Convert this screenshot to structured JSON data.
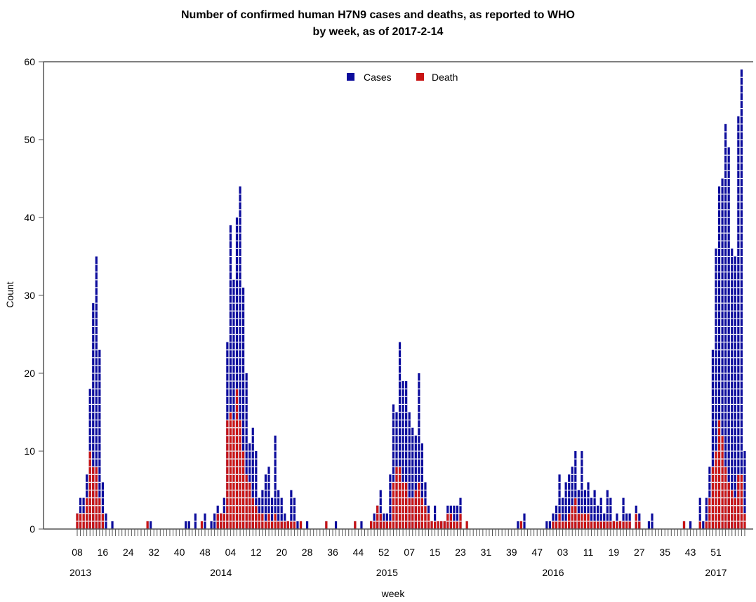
{
  "chart_data": {
    "type": "bar",
    "title": "Number of confirmed human H7N9 cases and deaths, as reported to WHO",
    "subtitle": "by week, as of 2017-2-14",
    "xlabel": "week",
    "ylabel": "Count",
    "ylim": [
      0,
      60
    ],
    "y_ticks": [
      0,
      10,
      20,
      30,
      40,
      50,
      60
    ],
    "legend_position": "top-center",
    "colors": {
      "Cases": "#0c0c9c",
      "Death": "#c81414",
      "separator": "#ffffff"
    },
    "x_tick_labels": [
      "08",
      "16",
      "24",
      "32",
      "40",
      "48",
      "04",
      "12",
      "20",
      "28",
      "36",
      "44",
      "52",
      "07",
      "15",
      "23",
      "31",
      "39",
      "47",
      "03",
      "11",
      "19",
      "27",
      "35",
      "43",
      "51"
    ],
    "x_tick_week_indices": [
      0,
      8,
      16,
      24,
      32,
      40,
      48,
      56,
      64,
      72,
      80,
      88,
      96,
      104,
      112,
      120,
      128,
      136,
      144,
      152,
      160,
      168,
      176,
      184,
      192,
      200
    ],
    "year_labels": [
      {
        "label": "2013",
        "week_index": 1
      },
      {
        "label": "2014",
        "week_index": 45
      },
      {
        "label": "2015",
        "week_index": 97
      },
      {
        "label": "2016",
        "week_index": 149
      },
      {
        "label": "2017",
        "week_index": 200
      }
    ],
    "series": [
      {
        "name": "Cases",
        "values": [
          2,
          4,
          4,
          7,
          18,
          29,
          35,
          23,
          6,
          2,
          0,
          1,
          0,
          0,
          0,
          0,
          0,
          0,
          0,
          0,
          0,
          0,
          1,
          1,
          0,
          0,
          0,
          0,
          0,
          0,
          0,
          0,
          0,
          0,
          1,
          1,
          0,
          2,
          0,
          0,
          2,
          0,
          1,
          2,
          3,
          2,
          4,
          24,
          39,
          32,
          40,
          44,
          31,
          20,
          11,
          13,
          10,
          4,
          5,
          7,
          8,
          4,
          12,
          5,
          4,
          2,
          1,
          5,
          4,
          1,
          1,
          0,
          1,
          0,
          0,
          0,
          0,
          0,
          1,
          0,
          0,
          1,
          0,
          0,
          0,
          0,
          0,
          1,
          0,
          1,
          0,
          0,
          1,
          2,
          3,
          5,
          2,
          2,
          7,
          16,
          15,
          24,
          19,
          19,
          15,
          13,
          12,
          20,
          11,
          6,
          3,
          1,
          3,
          1,
          1,
          1,
          3,
          3,
          3,
          3,
          4,
          0,
          1,
          0,
          0,
          0,
          0,
          0,
          0,
          0,
          0,
          0,
          0,
          0,
          0,
          0,
          0,
          0,
          1,
          1,
          2,
          0,
          0,
          0,
          0,
          0,
          0,
          1,
          1,
          2,
          3,
          7,
          4,
          6,
          7,
          8,
          10,
          5,
          10,
          5,
          6,
          4,
          5,
          3,
          4,
          2,
          5,
          4,
          1,
          2,
          1,
          4,
          2,
          2,
          0,
          3,
          2,
          0,
          0,
          1,
          2,
          0,
          0,
          0,
          0,
          0,
          0,
          0,
          0,
          0,
          1,
          0,
          1,
          0,
          0,
          4,
          1,
          4,
          8,
          23,
          36,
          44,
          45,
          52,
          49,
          36,
          35,
          53,
          59,
          10
        ]
      },
      {
        "name": "Death",
        "values": [
          2,
          2,
          2,
          4,
          10,
          8,
          8,
          4,
          2,
          0,
          0,
          0,
          0,
          0,
          0,
          0,
          0,
          0,
          0,
          0,
          0,
          0,
          1,
          0,
          0,
          0,
          0,
          0,
          0,
          0,
          0,
          0,
          0,
          0,
          0,
          0,
          0,
          0,
          0,
          1,
          0,
          0,
          0,
          0,
          2,
          2,
          2,
          14,
          15,
          14,
          18,
          14,
          10,
          7,
          6,
          4,
          3,
          2,
          2,
          1,
          2,
          1,
          2,
          1,
          1,
          1,
          1,
          1,
          1,
          0,
          1,
          0,
          0,
          0,
          0,
          0,
          0,
          0,
          1,
          0,
          0,
          0,
          0,
          0,
          0,
          0,
          0,
          1,
          0,
          0,
          0,
          0,
          1,
          1,
          3,
          2,
          1,
          1,
          1,
          6,
          8,
          8,
          6,
          6,
          4,
          4,
          5,
          6,
          4,
          3,
          2,
          1,
          1,
          1,
          1,
          1,
          2,
          2,
          1,
          1,
          2,
          0,
          1,
          0,
          0,
          0,
          0,
          0,
          0,
          0,
          0,
          0,
          0,
          0,
          0,
          0,
          0,
          0,
          0,
          1,
          0,
          0,
          0,
          0,
          0,
          0,
          0,
          0,
          0,
          1,
          1,
          2,
          1,
          1,
          2,
          3,
          4,
          2,
          2,
          2,
          2,
          1,
          1,
          1,
          1,
          1,
          1,
          1,
          1,
          1,
          1,
          1,
          1,
          1,
          0,
          2,
          1,
          0,
          0,
          0,
          0,
          0,
          0,
          0,
          0,
          0,
          0,
          0,
          0,
          0,
          1,
          0,
          0,
          0,
          0,
          1,
          0,
          1,
          4,
          8,
          10,
          14,
          12,
          8,
          6,
          5,
          4,
          7,
          7,
          2
        ]
      }
    ]
  }
}
